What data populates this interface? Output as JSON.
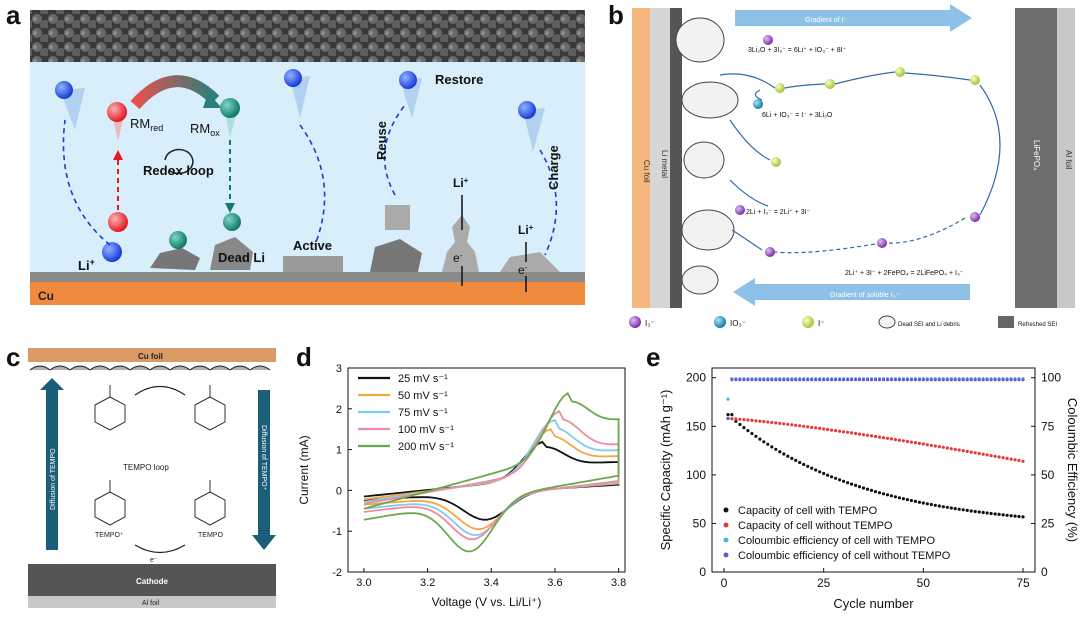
{
  "panel_a": {
    "label": "a",
    "restore": "Restore",
    "rm_red": "RM",
    "rm_red_sub": "red",
    "rm_ox": "RM",
    "rm_ox_sub": "ox",
    "redox_loop": "Redox loop",
    "li_plus": "Li",
    "dead_li": "Dead Li",
    "active": "Active",
    "reuse": "Reuse",
    "charge": "Charge",
    "li_plus_2": "Li",
    "li_plus_3": "Li",
    "e_minus_1": "e",
    "e_minus_2": "e",
    "cu": "Cu",
    "colors": {
      "electrolyte": "#d9eefb",
      "cu": "#f08a3c",
      "anode": "#555555"
    }
  },
  "panel_b": {
    "label": "b",
    "gradient_top": "Gradient of I⁻",
    "gradient_bottom": "Gradient of soluble I₃⁻",
    "cu_foil": "Cu foil",
    "li_metal": "Li metal",
    "cathode": "LiFePO₄",
    "al_foil": "Al foil",
    "eq1": "3Li₂O + 3I₃⁻ = 6Li⁺ + IO₃⁻ + 8I⁻",
    "eq2": "6Li + IO₃⁻ = I⁻ + 3Li₂O",
    "eq3": "2Li + I₃⁻ = 2Li⁺ + 3I⁻",
    "eq4": "2Li⁺ + 3I⁻ + 2FePO₄ = 2LiFePO₄ + I₃⁻",
    "legend": [
      "I₃⁻",
      "IO₃⁻",
      "I⁻",
      "Dead SEI and Li debris",
      "Refreshed SEI"
    ],
    "colors": {
      "i3": "#9b59c7",
      "io3": "#2aa0c8",
      "i": "#d6e86a"
    }
  },
  "panel_c": {
    "label": "c",
    "cu_foil": "Cu foil",
    "diffusion_left": "Diffusion of TEMPO",
    "diffusion_right": "Diffusion of TEMPO⁺",
    "tempo_loop": "TEMPO loop",
    "tempo_plus": "TEMPO⁺",
    "tempo": "TEMPO",
    "e_minus": "e⁻",
    "cathode": "Cathode",
    "al_foil": "Al foil",
    "colors": {
      "arrow": "#1b5e78",
      "cu": "#d99a64",
      "cathode": "#555555"
    }
  },
  "panel_d": {
    "label": "d",
    "ylabel": "Current (mA)",
    "xlabel": "Voltage (V vs. Li/Li⁺)"
  },
  "panel_e": {
    "label": "e",
    "ylabel_left": "Specific Capacity (mAh g⁻¹)",
    "ylabel_right": "Coloumbic Efficiency (%)",
    "xlabel": "Cycle number"
  },
  "chart_data": [
    {
      "type": "line",
      "panel": "d",
      "xlabel": "Voltage (V vs. Li/Li⁺)",
      "ylabel": "Current (mA)",
      "xlim": [
        2.95,
        3.82
      ],
      "ylim": [
        -2,
        3
      ],
      "xticks": [
        "3.0",
        "3.2",
        "3.4",
        "3.6",
        "3.8"
      ],
      "yticks": [
        "-2",
        "-1",
        "0",
        "1",
        "2",
        "3"
      ],
      "legend": "top-left",
      "series": [
        {
          "name": "25 mV s⁻¹",
          "color": "#111111",
          "x_start": 3.0,
          "x_end": 3.8,
          "anodic_peak": [
            3.57,
            1.2
          ],
          "cathodic_peak": [
            3.38,
            -0.72
          ],
          "start_current": -0.15,
          "end_current": 0.7
        },
        {
          "name": "50 mV s⁻¹",
          "color": "#f5a742",
          "x_start": 3.0,
          "x_end": 3.8,
          "anodic_peak": [
            3.59,
            1.5
          ],
          "cathodic_peak": [
            3.36,
            -0.95
          ],
          "start_current": -0.22,
          "end_current": 0.85
        },
        {
          "name": "75 mV s⁻¹",
          "color": "#7fcbea",
          "x_start": 3.0,
          "x_end": 3.8,
          "anodic_peak": [
            3.6,
            1.72
          ],
          "cathodic_peak": [
            3.35,
            -1.1
          ],
          "start_current": -0.28,
          "end_current": 1.0
        },
        {
          "name": "100 mV s⁻¹",
          "color": "#f08aa0",
          "x_start": 3.0,
          "x_end": 3.8,
          "anodic_peak": [
            3.62,
            1.95
          ],
          "cathodic_peak": [
            3.34,
            -1.2
          ],
          "start_current": -0.33,
          "end_current": 1.15
        },
        {
          "name": "200 mV s⁻¹",
          "color": "#6aa84f",
          "x_start": 3.0,
          "x_end": 3.8,
          "anodic_peak": [
            3.65,
            2.4
          ],
          "cathodic_peak": [
            3.33,
            -1.5
          ],
          "start_current": -0.45,
          "end_current": 1.8
        }
      ]
    },
    {
      "type": "scatter",
      "panel": "e",
      "xlabel": "Cycle number",
      "ylabel": "Specific Capacity (mAh g⁻¹)",
      "ylabel_right": "Coloumbic Efficiency (%)",
      "xlim": [
        -3,
        78
      ],
      "ylim": [
        0,
        210
      ],
      "ylim_right": [
        0,
        105
      ],
      "xticks": [
        "0",
        "25",
        "50",
        "75"
      ],
      "yticks": [
        "0",
        "50",
        "100",
        "150",
        "200"
      ],
      "yticks_right": [
        "0",
        "25",
        "50",
        "75",
        "100"
      ],
      "legend": "bottom-left",
      "x": [
        1,
        75
      ],
      "series": [
        {
          "name": "Capacity of cell with TEMPO",
          "color": "#111111",
          "axis": "left",
          "start": 162,
          "end": 44,
          "shape": "decay"
        },
        {
          "name": "Capacity of cell without TEMPO",
          "color": "#e03a3a",
          "axis": "left",
          "start": 158,
          "end": 114,
          "shape": "linear"
        },
        {
          "name": "Coloumbic efficiency of cell with TEMPO",
          "color": "#4fb3d9",
          "axis": "right",
          "start": 99.5,
          "end": 99.5,
          "first": 89
        },
        {
          "name": "Coloumbic efficiency of cell without TEMPO",
          "color": "#6a5acd",
          "axis": "right",
          "start": 99,
          "end": 99,
          "first": 79
        }
      ]
    }
  ]
}
